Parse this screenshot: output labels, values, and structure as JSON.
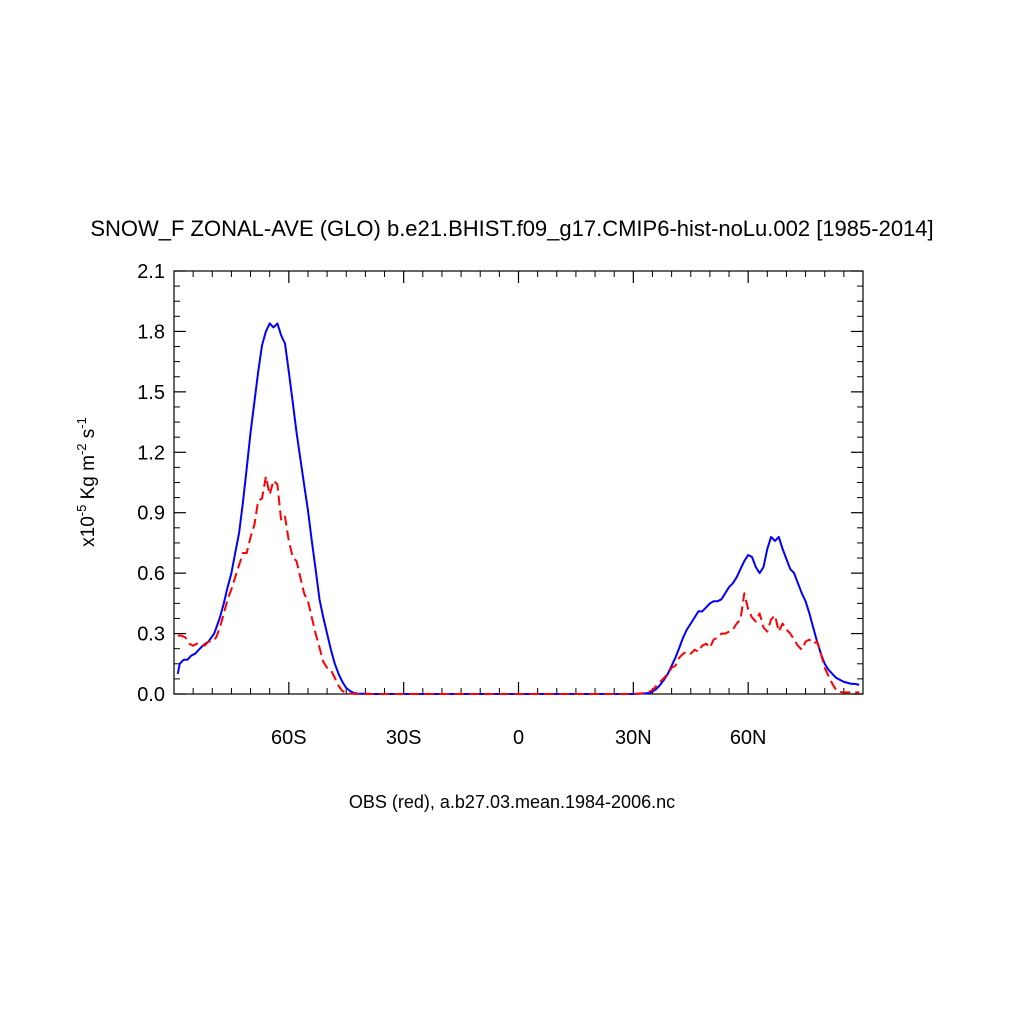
{
  "chart_data": {
    "type": "line",
    "title": "SNOW_F ZONAL-AVE (GLO) b.e21.BHIST.f09_g17.CMIP6-hist-noLu.002 [1985-2014]",
    "xlabel": "OBS (red), a.b27.03.mean.1984-2006.nc",
    "ylabel": {
      "prefix": "x10",
      "exp": "-5",
      "unit_a": " Kg m",
      "exp_a": "-2",
      "unit_b": " s",
      "exp_b": "-1"
    },
    "xlim": [
      -90,
      90
    ],
    "ylim": [
      0,
      2.1
    ],
    "x_ticks": [
      {
        "value": -60,
        "label": "60S"
      },
      {
        "value": -30,
        "label": "30S"
      },
      {
        "value": 0,
        "label": "0"
      },
      {
        "value": 30,
        "label": "30N"
      },
      {
        "value": 60,
        "label": "60N"
      }
    ],
    "y_ticks": [
      {
        "value": 0.0,
        "label": "0.0"
      },
      {
        "value": 0.3,
        "label": "0.3"
      },
      {
        "value": 0.6,
        "label": "0.6"
      },
      {
        "value": 0.9,
        "label": "0.9"
      },
      {
        "value": 1.2,
        "label": "1.2"
      },
      {
        "value": 1.5,
        "label": "1.5"
      },
      {
        "value": 1.8,
        "label": "1.8"
      },
      {
        "value": 2.1,
        "label": "2.1"
      }
    ],
    "grid": false,
    "series": [
      {
        "color": "#0000ff",
        "style": "solid",
        "x": [
          -89,
          -88.5,
          -87.5,
          -86.5,
          -85.5,
          -84.5,
          -83.5,
          -82.5,
          -81,
          -79.5,
          -78,
          -77,
          -76,
          -75,
          -74,
          -73,
          -72,
          -71,
          -70,
          -69,
          -68,
          -67,
          -66,
          -65,
          -64,
          -63,
          -62,
          -61,
          -60,
          -59,
          -58,
          -57,
          -56,
          -55,
          -54,
          -53,
          -52,
          -51,
          -50,
          -49,
          -48,
          -47,
          -46,
          -45,
          -44,
          -43,
          -42,
          -40,
          -38,
          -35,
          -30,
          -20,
          -10,
          0,
          10,
          20,
          30,
          33,
          34,
          35,
          36,
          37,
          38,
          39,
          40,
          41,
          42,
          43,
          44,
          45,
          46,
          47,
          48,
          49,
          50,
          51,
          52,
          53,
          54,
          55,
          56,
          57,
          58,
          59,
          60,
          61,
          62,
          63,
          64,
          65,
          66,
          67,
          68,
          69,
          70,
          71,
          72,
          73,
          74,
          75,
          76,
          77,
          78,
          79,
          80,
          81,
          82,
          83,
          84,
          85,
          86,
          87,
          88,
          89
        ],
        "values": [
          0.1,
          0.15,
          0.17,
          0.17,
          0.19,
          0.2,
          0.22,
          0.24,
          0.26,
          0.3,
          0.38,
          0.45,
          0.53,
          0.6,
          0.7,
          0.8,
          0.95,
          1.12,
          1.3,
          1.45,
          1.6,
          1.73,
          1.8,
          1.84,
          1.82,
          1.84,
          1.78,
          1.74,
          1.6,
          1.45,
          1.3,
          1.17,
          1.04,
          0.91,
          0.76,
          0.62,
          0.47,
          0.38,
          0.3,
          0.22,
          0.15,
          0.1,
          0.06,
          0.03,
          0.015,
          0.005,
          0.002,
          0.001,
          0.0,
          0.0,
          0.0,
          0.0,
          0.0,
          0.0,
          0.0,
          0.0,
          0.0,
          0.003,
          0.005,
          0.012,
          0.025,
          0.045,
          0.07,
          0.1,
          0.14,
          0.18,
          0.23,
          0.28,
          0.32,
          0.35,
          0.38,
          0.41,
          0.41,
          0.43,
          0.45,
          0.46,
          0.46,
          0.47,
          0.5,
          0.53,
          0.55,
          0.58,
          0.62,
          0.66,
          0.69,
          0.68,
          0.63,
          0.6,
          0.63,
          0.72,
          0.78,
          0.76,
          0.78,
          0.72,
          0.67,
          0.62,
          0.6,
          0.55,
          0.5,
          0.46,
          0.4,
          0.33,
          0.26,
          0.2,
          0.15,
          0.12,
          0.1,
          0.08,
          0.07,
          0.06,
          0.055,
          0.05,
          0.05,
          0.045
        ]
      },
      {
        "color": "#ff0000",
        "style": "dashed",
        "x": [
          -89,
          -88,
          -87,
          -86,
          -85,
          -84,
          -83,
          -82,
          -81,
          -80,
          -79,
          -78,
          -77,
          -76,
          -75,
          -74,
          -73,
          -72,
          -71,
          -70,
          -69,
          -68,
          -67,
          -66,
          -65,
          -64,
          -63,
          -62,
          -61,
          -60,
          -59,
          -58,
          -57,
          -56,
          -55,
          -54,
          -53,
          -52,
          -51,
          -50,
          -49,
          -48,
          -47,
          -46,
          -45,
          -44,
          -43,
          -42,
          -40,
          -38,
          -35,
          -30,
          -20,
          -10,
          0,
          10,
          20,
          30,
          33,
          34,
          35,
          36,
          37,
          38,
          39,
          40,
          41,
          42,
          43,
          44,
          45,
          46,
          47,
          48,
          49,
          50,
          51,
          52,
          53,
          54,
          55,
          56,
          57,
          58,
          59,
          60,
          61,
          62,
          63,
          64,
          65,
          66,
          67,
          68,
          69,
          70,
          71,
          72,
          73,
          74,
          75,
          76,
          77,
          78,
          79,
          80,
          81,
          82,
          83,
          84,
          85,
          86,
          87,
          88,
          89
        ],
        "values": [
          0.29,
          0.29,
          0.28,
          0.25,
          0.24,
          0.25,
          0.25,
          0.24,
          0.26,
          0.26,
          0.28,
          0.33,
          0.4,
          0.47,
          0.52,
          0.58,
          0.64,
          0.7,
          0.7,
          0.78,
          0.84,
          0.96,
          0.97,
          1.08,
          0.99,
          1.06,
          1.04,
          0.86,
          0.88,
          0.76,
          0.68,
          0.66,
          0.58,
          0.5,
          0.46,
          0.38,
          0.3,
          0.23,
          0.16,
          0.13,
          0.12,
          0.08,
          0.04,
          0.015,
          0.005,
          0.002,
          0.001,
          0.0,
          0.0,
          0.0,
          0.0,
          0.0,
          0.0,
          0.0,
          0.0,
          0.0,
          0.0,
          0.0,
          0.005,
          0.01,
          0.02,
          0.04,
          0.06,
          0.08,
          0.1,
          0.13,
          0.14,
          0.18,
          0.2,
          0.21,
          0.2,
          0.22,
          0.21,
          0.24,
          0.25,
          0.23,
          0.27,
          0.28,
          0.3,
          0.3,
          0.31,
          0.32,
          0.35,
          0.37,
          0.5,
          0.42,
          0.38,
          0.36,
          0.4,
          0.33,
          0.31,
          0.37,
          0.39,
          0.31,
          0.35,
          0.32,
          0.3,
          0.27,
          0.24,
          0.22,
          0.26,
          0.27,
          0.25,
          0.26,
          0.2,
          0.13,
          0.09,
          0.05,
          0.02,
          0.01,
          0.008,
          0.008,
          0.008,
          0.008,
          0.008
        ]
      }
    ]
  }
}
